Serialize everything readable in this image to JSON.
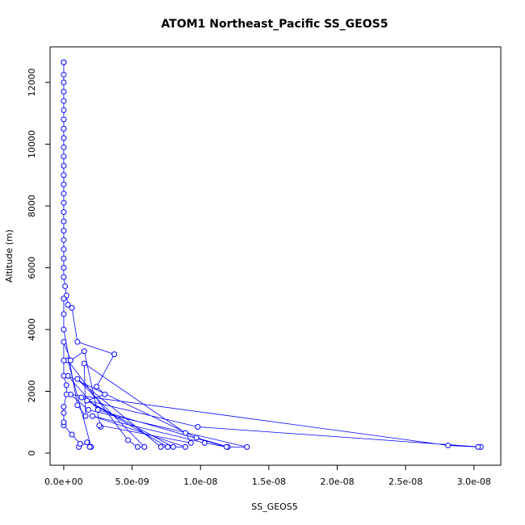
{
  "chart_data": {
    "type": "scatter",
    "title": "ATOM1 Northeast_Pacific SS_GEOS5",
    "x_label": "SS_GEOS5",
    "y_label": "Altitude (m)",
    "xlim": [
      -1e-09,
      3.196e-08
    ],
    "ylim": [
      -392,
      13150
    ],
    "xticks": [
      {
        "value": 0,
        "label": "0.0e+00"
      },
      {
        "value": 5e-09,
        "label": "5.0e-09"
      },
      {
        "value": 1e-08,
        "label": "1.0e-08"
      },
      {
        "value": 1.5e-08,
        "label": "1.5e-08"
      },
      {
        "value": 2e-08,
        "label": "2.0e-08"
      },
      {
        "value": 2.5e-08,
        "label": "2.5e-08"
      },
      {
        "value": 3e-08,
        "label": "3.0e-08"
      }
    ],
    "yticks": [
      0,
      2000,
      4000,
      6000,
      8000,
      10000,
      12000
    ],
    "series": [
      {
        "color": "#0000ff",
        "x": [
          0,
          0,
          0,
          0,
          0,
          0,
          0,
          0,
          0,
          0,
          0,
          0,
          0,
          0,
          0,
          0,
          0,
          0,
          0,
          0,
          0,
          0,
          0,
          0,
          0,
          1e-10,
          2e-10,
          3e-10,
          6e-10,
          1e-09,
          3.7e-09,
          2.4e-09,
          3e-09,
          1.7e-09,
          9.8e-09,
          3.05e-08,
          3.03e-08,
          2.81e-08,
          5e-10,
          1.8e-09,
          1.34e-08,
          1.2e-08,
          9.7e-09,
          3e-10,
          2.5e-09,
          1.19e-08,
          1.03e-08,
          2.1e-09,
          8.9e-09,
          8e-09,
          1.3e-09,
          7.6e-09,
          7.1e-09,
          1e-09,
          5.9e-09,
          5.4e-09,
          4.7e-09,
          3e-10,
          2e-09,
          1.9e-09,
          1.7e-09,
          1.1e-09,
          1.2e-09,
          6e-10,
          0,
          0,
          0,
          0,
          2e-10,
          2e-10,
          0,
          0,
          0,
          5e-10,
          1.5e-09,
          2.7e-09,
          2.6e-09,
          9.3e-09,
          8.9e-09,
          1.5e-09,
          1.6e-09,
          1e-09,
          0,
          0,
          0
        ],
        "values": [
          12650,
          12650,
          12250,
          12000,
          11700,
          11400,
          11100,
          10800,
          10500,
          10200,
          9900,
          9600,
          9300,
          9000,
          8700,
          8400,
          8100,
          7800,
          7500,
          7200,
          6900,
          6600,
          6300,
          6000,
          5700,
          5400,
          5100,
          4800,
          4700,
          3600,
          3200,
          2150,
          1900,
          1700,
          850,
          200,
          200,
          250,
          1900,
          1400,
          200,
          200,
          500,
          2500,
          1400,
          200,
          330,
          1200,
          200,
          200,
          1800,
          200,
          200,
          2400,
          200,
          200,
          420,
          3000,
          200,
          200,
          350,
          200,
          300,
          600,
          900,
          1000,
          1300,
          1500,
          1900,
          2200,
          2500,
          3000,
          3600,
          3000,
          3300,
          850,
          900,
          330,
          650,
          2900,
          1200,
          1550,
          4000,
          4500,
          5000
        ]
      }
    ]
  }
}
